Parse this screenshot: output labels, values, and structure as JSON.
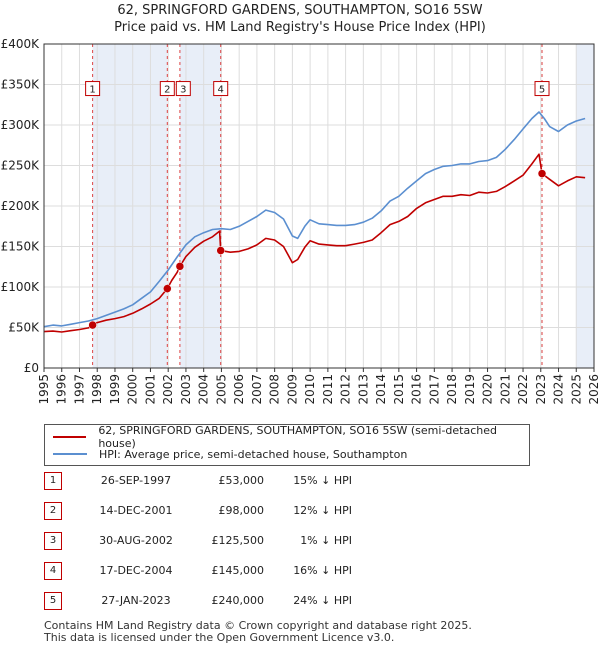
{
  "title": {
    "line1": "62, SPRINGFORD GARDENS, SOUTHAMPTON, SO16 5SW",
    "line2": "Price paid vs. HM Land Registry's House Price Index (HPI)"
  },
  "colors": {
    "price": "#c00000",
    "hpi": "#5b8fd0",
    "shade": "#e8eef8",
    "grid": "#dddddd",
    "marker_line": "#dd4444"
  },
  "chart_data": {
    "type": "line",
    "xlim": [
      1995,
      2026
    ],
    "ylim": [
      0,
      400000
    ],
    "x_ticks": [
      "1995",
      "1996",
      "1997",
      "1998",
      "1999",
      "2000",
      "2001",
      "2002",
      "2003",
      "2004",
      "2005",
      "2006",
      "2007",
      "2008",
      "2009",
      "2010",
      "2011",
      "2012",
      "2013",
      "2014",
      "2015",
      "2016",
      "2017",
      "2018",
      "2019",
      "2020",
      "2021",
      "2022",
      "2023",
      "2024",
      "2025",
      "2026"
    ],
    "y_ticks": [
      {
        "value": 0,
        "label": "£0"
      },
      {
        "value": 50000,
        "label": "£50K"
      },
      {
        "value": 100000,
        "label": "£100K"
      },
      {
        "value": 150000,
        "label": "£150K"
      },
      {
        "value": 200000,
        "label": "£200K"
      },
      {
        "value": 250000,
        "label": "£250K"
      },
      {
        "value": 300000,
        "label": "£300K"
      },
      {
        "value": 350000,
        "label": "£350K"
      },
      {
        "value": 400000,
        "label": "£400K"
      }
    ],
    "shaded_periods": [
      [
        1997.74,
        2001.95
      ],
      [
        2002.66,
        2004.96
      ],
      [
        2025.0,
        2026.0
      ]
    ],
    "series": [
      {
        "name": "62, SPRINGFORD GARDENS, SOUTHAMPTON, SO16 5SW (semi-detached house)",
        "x": [
          1995.0,
          1995.5,
          1996.0,
          1996.5,
          1997.0,
          1997.5,
          1997.74,
          1998.0,
          1998.5,
          1999.0,
          1999.5,
          2000.0,
          2000.5,
          2001.0,
          2001.5,
          2001.95,
          2002.2,
          2002.5,
          2002.66,
          2003.0,
          2003.5,
          2004.0,
          2004.5,
          2004.9,
          2004.96,
          2005.5,
          2006.0,
          2006.5,
          2007.0,
          2007.5,
          2008.0,
          2008.5,
          2009.0,
          2009.3,
          2009.7,
          2010.0,
          2010.5,
          2011.0,
          2011.5,
          2012.0,
          2012.5,
          2013.0,
          2013.5,
          2014.0,
          2014.5,
          2015.0,
          2015.5,
          2016.0,
          2016.5,
          2017.0,
          2017.5,
          2018.0,
          2018.5,
          2019.0,
          2019.5,
          2020.0,
          2020.5,
          2021.0,
          2021.5,
          2022.0,
          2022.5,
          2022.9,
          2023.07,
          2023.5,
          2024.0,
          2024.5,
          2025.0,
          2025.5
        ],
        "values": [
          45000,
          45500,
          44500,
          46000,
          47500,
          49500,
          53000,
          56000,
          59000,
          61000,
          63500,
          67500,
          73000,
          79000,
          86000,
          98000,
          108000,
          118000,
          125500,
          137500,
          149000,
          156500,
          162000,
          169000,
          145000,
          143000,
          144000,
          147000,
          152000,
          160000,
          158000,
          150000,
          130000,
          134000,
          149000,
          157000,
          153000,
          152000,
          151000,
          151000,
          153000,
          155000,
          158000,
          167000,
          177000,
          181000,
          187000,
          197000,
          204000,
          208000,
          212000,
          212000,
          214000,
          213000,
          217000,
          216000,
          218000,
          224000,
          231000,
          238000,
          252000,
          264000,
          240000,
          233000,
          225000,
          231000,
          236000,
          235000
        ]
      },
      {
        "name": "HPI: Average price, semi-detached house, Southampton",
        "x": [
          1995.0,
          1995.5,
          1996.0,
          1996.5,
          1997.0,
          1997.5,
          1998.0,
          1998.5,
          1999.0,
          1999.5,
          2000.0,
          2000.5,
          2001.0,
          2001.5,
          2002.0,
          2002.5,
          2003.0,
          2003.5,
          2004.0,
          2004.5,
          2005.0,
          2005.5,
          2006.0,
          2006.5,
          2007.0,
          2007.5,
          2008.0,
          2008.5,
          2009.0,
          2009.3,
          2009.7,
          2010.0,
          2010.5,
          2011.0,
          2011.5,
          2012.0,
          2012.5,
          2013.0,
          2013.5,
          2014.0,
          2014.5,
          2015.0,
          2015.5,
          2016.0,
          2016.5,
          2017.0,
          2017.5,
          2018.0,
          2018.5,
          2019.0,
          2019.5,
          2020.0,
          2020.5,
          2021.0,
          2021.5,
          2022.0,
          2022.5,
          2022.9,
          2023.2,
          2023.5,
          2024.0,
          2024.5,
          2025.0,
          2025.5
        ],
        "values": [
          51000,
          53000,
          52000,
          54000,
          56000,
          58000,
          61000,
          65000,
          69000,
          73000,
          78000,
          86000,
          94000,
          107000,
          121000,
          137000,
          152000,
          162000,
          167000,
          171000,
          172000,
          171000,
          175000,
          181000,
          187000,
          195000,
          192000,
          184000,
          163000,
          160000,
          175000,
          183000,
          178000,
          177000,
          176000,
          176000,
          177000,
          180000,
          185000,
          194000,
          206000,
          212000,
          222000,
          231000,
          240000,
          245000,
          249000,
          250000,
          252000,
          252000,
          255000,
          256000,
          260000,
          270000,
          282000,
          295000,
          308000,
          316000,
          308000,
          298000,
          292000,
          300000,
          305000,
          308000
        ]
      }
    ],
    "sales": [
      {
        "n": "1",
        "x": 1997.74,
        "price": 53000
      },
      {
        "n": "2",
        "x": 2001.95,
        "price": 98000
      },
      {
        "n": "3",
        "x": 2002.66,
        "price": 125500
      },
      {
        "n": "4",
        "x": 2004.96,
        "price": 145000
      },
      {
        "n": "5",
        "x": 2023.07,
        "price": 240000
      }
    ],
    "marker_value": 345000
  },
  "legend": {
    "price_label": "62, SPRINGFORD GARDENS, SOUTHAMPTON, SO16 5SW (semi-detached house)",
    "hpi_label": "HPI: Average price, semi-detached house, Southampton"
  },
  "table": [
    {
      "n": "1",
      "date": "26-SEP-1997",
      "price": "£53,000",
      "hpi": "15% ↓ HPI"
    },
    {
      "n": "2",
      "date": "14-DEC-2001",
      "price": "£98,000",
      "hpi": "12% ↓ HPI"
    },
    {
      "n": "3",
      "date": "30-AUG-2002",
      "price": "£125,500",
      "hpi": "1% ↓ HPI"
    },
    {
      "n": "4",
      "date": "17-DEC-2004",
      "price": "£145,000",
      "hpi": "16% ↓ HPI"
    },
    {
      "n": "5",
      "date": "27-JAN-2023",
      "price": "£240,000",
      "hpi": "24% ↓ HPI"
    }
  ],
  "footer": {
    "line1": "Contains HM Land Registry data © Crown copyright and database right 2025.",
    "line2": "This data is licensed under the Open Government Licence v3.0."
  }
}
